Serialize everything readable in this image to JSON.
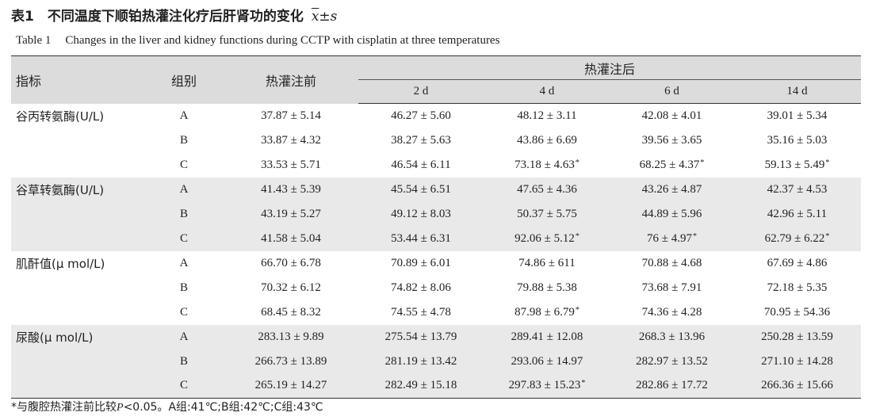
{
  "title_cn": "表1　不同温度下顺铂热灌注化疗后肝肾功的变化",
  "title_stat_mean": "x",
  "title_stat_sd": "±s",
  "title_en_label": "Table 1",
  "title_en_text": "Changes in the liver and kidney functions during CCTP with cisplatin at three temperatures",
  "headers": {
    "indicator": "指标",
    "group": "组别",
    "before": "热灌注前",
    "after": "热灌注后",
    "times": [
      "2 d",
      "4 d",
      "6 d",
      "14 d"
    ]
  },
  "sig_mark": "*",
  "rows": [
    {
      "ind": "谷丙转氨酶(U/L)",
      "g": "A",
      "v": [
        "37.87 ± 5.14",
        "46.27 ± 5.60",
        "48.12 ± 3.11",
        "42.08 ± 4.01",
        "39.01 ± 5.34"
      ],
      "s": [
        false,
        false,
        false,
        false,
        false
      ]
    },
    {
      "ind": "",
      "g": "B",
      "v": [
        "33.87 ± 4.32",
        "38.27 ± 5.63",
        "43.86 ± 6.69",
        "39.56 ± 3.65",
        "35.16 ± 5.03"
      ],
      "s": [
        false,
        false,
        false,
        false,
        false
      ]
    },
    {
      "ind": "",
      "g": "C",
      "v": [
        "33.53 ± 5.71",
        "46.54 ± 6.11",
        "73.18 ± 4.63",
        "68.25 ± 4.37",
        "59.13 ± 5.49"
      ],
      "s": [
        false,
        false,
        true,
        true,
        true
      ]
    },
    {
      "ind": "谷草转氨酶(U/L)",
      "g": "A",
      "v": [
        "41.43 ± 5.39",
        "45.54 ± 6.51",
        "47.65 ± 4.36",
        "43.26 ± 4.87",
        "42.37 ± 4.53"
      ],
      "s": [
        false,
        false,
        false,
        false,
        false
      ]
    },
    {
      "ind": "",
      "g": "B",
      "v": [
        "43.19 ± 5.27",
        "49.12 ± 8.03",
        "50.37 ± 5.75",
        "44.89 ± 5.96",
        "42.96 ± 5.11"
      ],
      "s": [
        false,
        false,
        false,
        false,
        false
      ]
    },
    {
      "ind": "",
      "g": "C",
      "v": [
        "41.58 ± 5.04",
        "53.44 ± 6.31",
        "92.06 ± 5.12",
        "76 ± 4.97",
        "62.79 ± 6.22"
      ],
      "s": [
        false,
        false,
        true,
        true,
        true
      ]
    },
    {
      "ind": "肌酐值(μ mol/L)",
      "g": "A",
      "v": [
        "66.70 ± 6.78",
        "70.89 ± 6.01",
        "74.86 ± 611",
        "70.88 ± 4.68",
        "67.69 ± 4.86"
      ],
      "s": [
        false,
        false,
        false,
        false,
        false
      ]
    },
    {
      "ind": "",
      "g": "B",
      "v": [
        "70.32 ± 6.12",
        "74.82 ± 8.06",
        "79.88 ± 5.38",
        "73.68 ± 7.91",
        "72.18 ± 5.35"
      ],
      "s": [
        false,
        false,
        false,
        false,
        false
      ]
    },
    {
      "ind": "",
      "g": "C",
      "v": [
        "68.45 ± 8.32",
        "74.55 ± 4.78",
        "87.98 ± 6.79",
        "74.36 ± 4.28",
        "70.95 ± 54.36"
      ],
      "s": [
        false,
        false,
        true,
        false,
        false
      ]
    },
    {
      "ind": "尿酸(μ mol/L)",
      "g": "A",
      "v": [
        "283.13 ± 9.89",
        "275.54 ± 13.79",
        "289.41 ± 12.08",
        "268.3 ± 13.96",
        "250.28 ± 13.59"
      ],
      "s": [
        false,
        false,
        false,
        false,
        false
      ]
    },
    {
      "ind": "",
      "g": "B",
      "v": [
        "266.73 ± 13.89",
        "281.19 ± 13.42",
        "293.06 ± 14.97",
        "282.97 ± 13.52",
        "271.10 ± 14.28"
      ],
      "s": [
        false,
        false,
        false,
        false,
        false
      ]
    },
    {
      "ind": "",
      "g": "C",
      "v": [
        "265.19 ± 14.27",
        "282.49 ± 15.18",
        "297.83 ± 15.23",
        "282.86 ± 17.72",
        "266.36 ± 15.66"
      ],
      "s": [
        false,
        false,
        true,
        false,
        false
      ]
    }
  ],
  "footnote_pre": "*与腹腔热灌注前比较",
  "footnote_p": "P",
  "footnote_post": "<0.05。A组:41℃;B组:42℃;C组:43℃",
  "colors": {
    "header_bg": "#dcdcdc",
    "shade_bg": "#e9e9e9",
    "text": "#231f20"
  }
}
